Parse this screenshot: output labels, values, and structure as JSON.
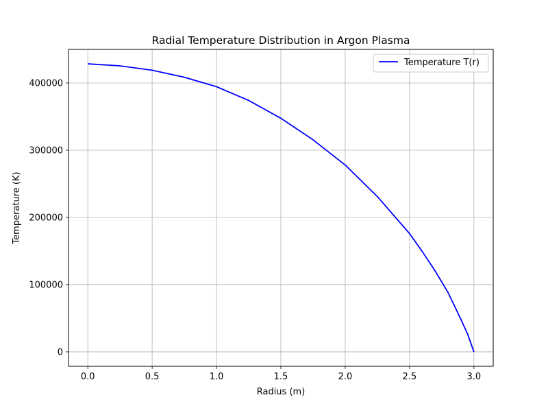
{
  "chart_data": {
    "type": "line",
    "title": "Radial Temperature Distribution in Argon Plasma",
    "xlabel": "Radius (m)",
    "ylabel": "Temperature (K)",
    "xlim": [
      -0.15,
      3.15
    ],
    "ylim": [
      -21500,
      450000
    ],
    "xticks": [
      0.0,
      0.5,
      1.0,
      1.5,
      2.0,
      2.5,
      3.0
    ],
    "xtick_labels": [
      "0.0",
      "0.5",
      "1.0",
      "1.5",
      "2.0",
      "2.5",
      "3.0"
    ],
    "yticks": [
      0,
      100000,
      200000,
      300000,
      400000
    ],
    "ytick_labels": [
      "0",
      "100000",
      "200000",
      "300000",
      "400000"
    ],
    "grid": true,
    "legend_position": "upper right",
    "series": [
      {
        "name": "Temperature T(r)",
        "color": "#0000ff",
        "x": [
          0.0,
          0.25,
          0.5,
          0.75,
          1.0,
          1.25,
          1.5,
          1.75,
          2.0,
          2.25,
          2.5,
          2.6,
          2.7,
          2.8,
          2.9,
          2.95,
          3.0
        ],
        "y": [
          428500,
          425500,
          419000,
          408500,
          394500,
          374000,
          347500,
          315500,
          278000,
          231000,
          176000,
          149000,
          120000,
          88000,
          48000,
          27000,
          0
        ]
      }
    ]
  },
  "colors": {
    "grid": "#b0b0b0",
    "axis": "#000000",
    "background": "#ffffff"
  }
}
